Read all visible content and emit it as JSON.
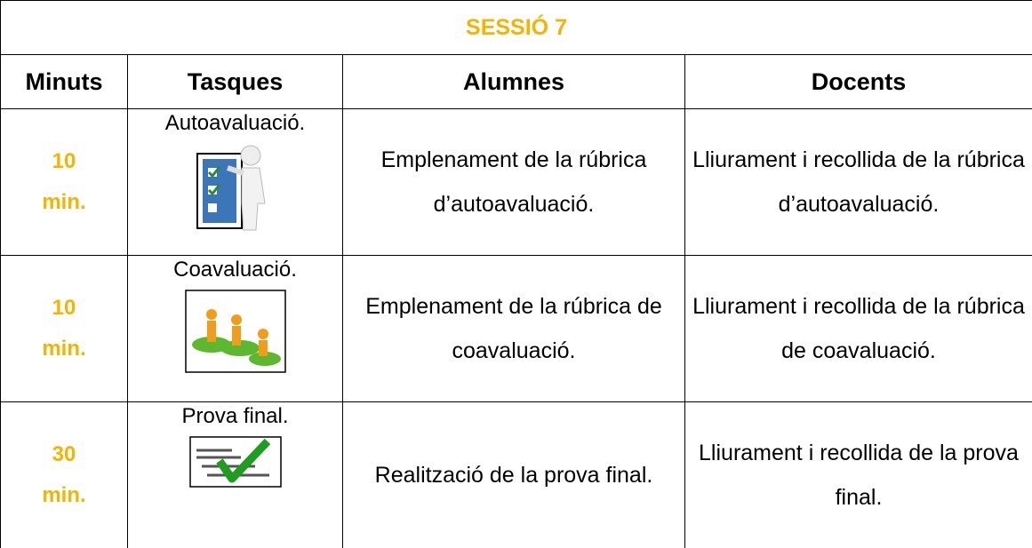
{
  "table": {
    "title": "SESSIÓ 7",
    "headers": [
      "Minuts",
      "Tasques",
      "Alumnes",
      "Docents"
    ],
    "rows": [
      [
        "10 min.",
        "Autoavaluació.",
        "Emplenament de la rúbrica d’autoavaluació.",
        "Lliurament i recollida de la rúbrica d’autoavaluació."
      ],
      [
        "10 min.",
        "Coavaluació.",
        "Emplenament de la rúbrica de coavaluació.",
        "Lliurament i recollida de la rúbrica de coavaluació."
      ],
      [
        "30 min.",
        "Prova final.",
        "Realització de la prova final.",
        "Lliurament i recollida de la prova final."
      ]
    ]
  }
}
